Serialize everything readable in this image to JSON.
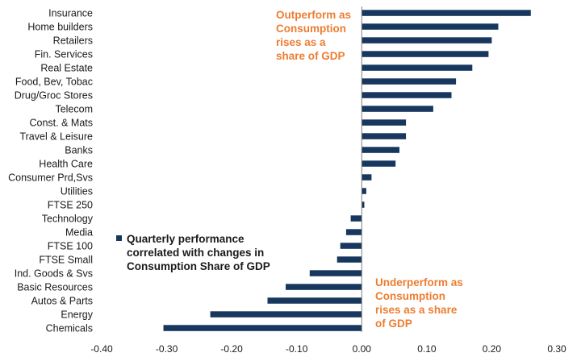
{
  "chart_data": {
    "type": "bar",
    "orientation": "horizontal",
    "categories": [
      "Insurance",
      "Home builders",
      "Retailers",
      "Fin. Services",
      "Real Estate",
      "Food, Bev, Tobac",
      "Drug/Groc Stores",
      "Telecom",
      "Const. & Mats",
      "Travel & Leisure",
      "Banks",
      "Health Care",
      "Consumer Prd,Svs",
      "Utilities",
      "FTSE 250",
      "Technology",
      "Media",
      "FTSE 100",
      "FTSE Small",
      "Ind. Goods & Svs",
      "Basic Resources",
      "Autos & Parts",
      "Energy",
      "Chemicals"
    ],
    "values": [
      0.26,
      0.21,
      0.2,
      0.195,
      0.17,
      0.145,
      0.138,
      0.11,
      0.068,
      0.068,
      0.058,
      0.052,
      0.015,
      0.007,
      0.004,
      -0.017,
      -0.024,
      -0.033,
      -0.038,
      -0.08,
      -0.117,
      -0.145,
      -0.233,
      -0.305
    ],
    "xlim": [
      -0.4,
      0.3
    ],
    "xticks": [
      "-0.40",
      "-0.30",
      "-0.20",
      "-0.10",
      "0.00",
      "0.10",
      "0.20",
      "0.30"
    ],
    "tick_values": [
      -0.4,
      -0.3,
      -0.2,
      -0.1,
      0.0,
      0.1,
      0.2,
      0.3
    ],
    "legend": {
      "lines": [
        "Quarterly performance",
        "correlated with changes in",
        "Consumption Share of GDP"
      ],
      "placement": "center-left"
    },
    "annotations": {
      "top": [
        "Outperform as",
        "Consumption",
        "rises as a",
        "share of GDP"
      ],
      "bottom": [
        "Underperform as",
        "Consumption",
        "rises as a share",
        "of GDP"
      ]
    },
    "colors": {
      "bar": "#17375e",
      "annotation": "#ed7d31",
      "axis": "#7f7f7f"
    }
  }
}
